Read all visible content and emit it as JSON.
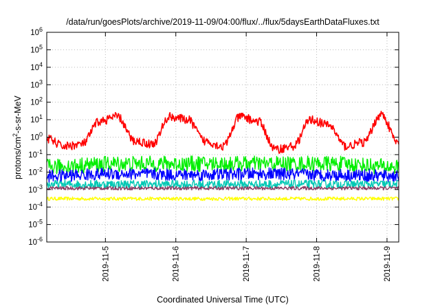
{
  "chart_data": {
    "type": "line",
    "title": "/data/run/goesPlots/archive/2019-11-09/04:00/flux/../flux/5daysEarthDataFluxes.txt",
    "xlabel": "Coordinated Universal Time (UTC)",
    "ylabel": "protons/cm2-s-sr-MeV",
    "y_scale": "log",
    "ylim": [
      1e-06,
      1000000.0
    ],
    "y_tick_labels": [
      {
        "base": "10",
        "exp": "6"
      },
      {
        "base": "10",
        "exp": "5"
      },
      {
        "base": "10",
        "exp": "4"
      },
      {
        "base": "10",
        "exp": "3"
      },
      {
        "base": "10",
        "exp": "2"
      },
      {
        "base": "10",
        "exp": "1"
      },
      {
        "base": "10",
        "exp": "0"
      },
      {
        "base": "10",
        "exp": "-1"
      },
      {
        "base": "10",
        "exp": "-2"
      },
      {
        "base": "10",
        "exp": "-3"
      },
      {
        "base": "10",
        "exp": "-4"
      },
      {
        "base": "10",
        "exp": "-5"
      },
      {
        "base": "10",
        "exp": "-6"
      }
    ],
    "xlim": [
      "2019-11-04T04:00",
      "2019-11-09T04:00"
    ],
    "x_tick_labels": [
      "2019-11-5",
      "2019-11-6",
      "2019-11-7",
      "2019-11-8",
      "2019-11-9"
    ],
    "grid": true,
    "legend": "none",
    "series": [
      {
        "color": "#ff0000",
        "x": [
          "2019-11-04T04:00",
          "2019-11-04T10:00",
          "2019-11-04T16:00",
          "2019-11-04T22:00",
          "2019-11-05T04:00",
          "2019-11-05T10:00",
          "2019-11-05T16:00",
          "2019-11-05T22:00",
          "2019-11-06T04:00",
          "2019-11-06T10:00",
          "2019-11-06T16:00",
          "2019-11-06T22:00",
          "2019-11-07T04:00",
          "2019-11-07T10:00",
          "2019-11-07T16:00",
          "2019-11-07T22:00",
          "2019-11-08T04:00",
          "2019-11-08T10:00",
          "2019-11-08T16:00",
          "2019-11-08T22:00",
          "2019-11-09T04:00"
        ],
        "values": [
          0.8,
          0.3,
          0.4,
          8,
          15,
          0.6,
          0.4,
          15,
          10,
          0.6,
          0.3,
          15,
          8,
          0.2,
          0.3,
          10,
          5,
          0.3,
          0.5,
          20,
          0.4
        ]
      },
      {
        "color": "#00ee00",
        "x": [
          "2019-11-04T04:00",
          "2019-11-05T04:00",
          "2019-11-06T04:00",
          "2019-11-07T04:00",
          "2019-11-08T04:00",
          "2019-11-09T04:00"
        ],
        "values": [
          0.02,
          0.03,
          0.03,
          0.03,
          0.03,
          0.02
        ]
      },
      {
        "color": "#0000ff",
        "x": [
          "2019-11-04T04:00",
          "2019-11-05T04:00",
          "2019-11-06T04:00",
          "2019-11-07T04:00",
          "2019-11-08T04:00",
          "2019-11-09T04:00"
        ],
        "values": [
          0.006,
          0.008,
          0.007,
          0.008,
          0.007,
          0.006
        ]
      },
      {
        "color": "#00c8b4",
        "x": [
          "2019-11-04T04:00",
          "2019-11-05T04:00",
          "2019-11-06T04:00",
          "2019-11-07T04:00",
          "2019-11-08T04:00",
          "2019-11-09T04:00"
        ],
        "values": [
          0.002,
          0.002,
          0.002,
          0.002,
          0.002,
          0.002
        ]
      },
      {
        "color": "#8b3a62",
        "x": [
          "2019-11-04T04:00",
          "2019-11-05T04:00",
          "2019-11-06T04:00",
          "2019-11-07T04:00",
          "2019-11-08T04:00",
          "2019-11-09T04:00"
        ],
        "values": [
          0.0012,
          0.0012,
          0.0012,
          0.0012,
          0.0012,
          0.0012
        ]
      },
      {
        "color": "#ffff00",
        "x": [
          "2019-11-04T04:00",
          "2019-11-05T04:00",
          "2019-11-06T04:00",
          "2019-11-07T04:00",
          "2019-11-08T04:00",
          "2019-11-09T04:00"
        ],
        "values": [
          0.0003,
          0.0003,
          0.0003,
          0.0003,
          0.0003,
          0.0003
        ]
      }
    ]
  }
}
